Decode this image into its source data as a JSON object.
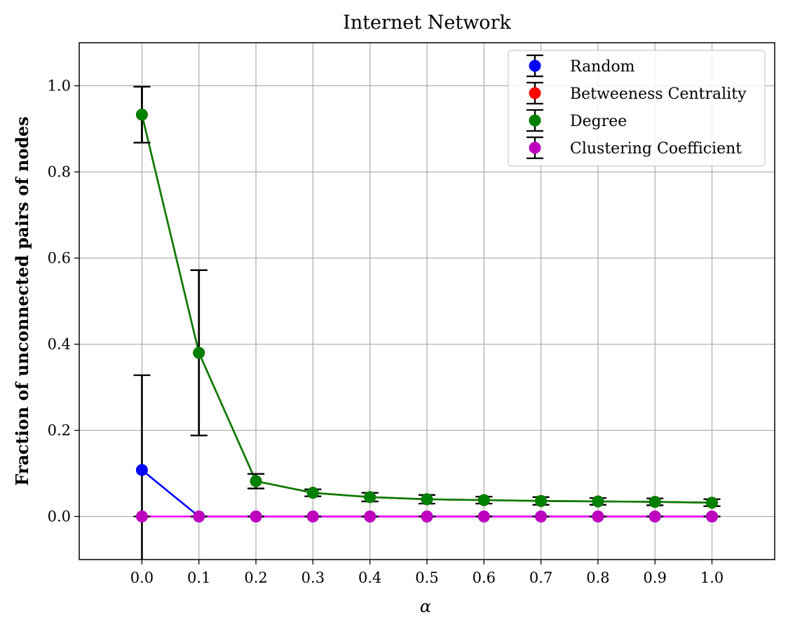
{
  "chart_data": {
    "type": "line",
    "title": "Internet Network",
    "xlabel": "α",
    "ylabel": "Fraction of unconnected pairs of nodes",
    "x": [
      0.0,
      0.1,
      0.2,
      0.3,
      0.4,
      0.5,
      0.6,
      0.7,
      0.8,
      0.9,
      1.0
    ],
    "x_tick_labels": [
      "0.0",
      "0.1",
      "0.2",
      "0.3",
      "0.4",
      "0.5",
      "0.6",
      "0.7",
      "0.8",
      "0.9",
      "1.0"
    ],
    "y_tick_values": [
      0.0,
      0.2,
      0.4,
      0.6,
      0.8,
      1.0
    ],
    "y_tick_labels": [
      "0.0",
      "0.2",
      "0.4",
      "0.6",
      "0.8",
      "1.0"
    ],
    "xlim": [
      -0.11,
      1.11
    ],
    "ylim": [
      -0.1,
      1.1
    ],
    "grid": true,
    "legend_position": "top-right",
    "series": [
      {
        "name": "Random",
        "color": "#0000ff",
        "values": [
          0.108,
          0.0,
          0.0,
          0.0,
          0.0,
          0.0,
          0.0,
          0.0,
          0.0,
          0.0,
          0.0
        ],
        "errors": [
          0.22,
          0.0,
          0.0,
          0.0,
          0.0,
          0.0,
          0.0,
          0.0,
          0.0,
          0.0,
          0.0
        ]
      },
      {
        "name": "Betweeness Centrality",
        "color": "#ff0000",
        "values": [
          0.933,
          0.38,
          0.082,
          0.055,
          0.045,
          0.04,
          0.038,
          0.036,
          0.035,
          0.034,
          0.032
        ],
        "errors": [
          0.065,
          0.192,
          0.017,
          0.008,
          0.01,
          0.01,
          0.008,
          0.009,
          0.008,
          0.008,
          0.008
        ]
      },
      {
        "name": "Degree",
        "color": "#008000",
        "values": [
          0.933,
          0.38,
          0.082,
          0.055,
          0.045,
          0.04,
          0.038,
          0.036,
          0.035,
          0.034,
          0.032
        ],
        "errors": [
          0.065,
          0.192,
          0.017,
          0.008,
          0.01,
          0.01,
          0.008,
          0.009,
          0.008,
          0.008,
          0.008
        ]
      },
      {
        "name": "Clustering Coefficient",
        "color": "#ff00ff",
        "marker_color": "#bf00bf",
        "values": [
          0.0,
          0.0,
          0.0,
          0.0,
          0.0,
          0.0,
          0.0,
          0.0,
          0.0,
          0.0,
          0.0
        ],
        "errors": [
          0.0,
          0.0,
          0.0,
          0.0,
          0.0,
          0.0,
          0.0,
          0.0,
          0.0,
          0.0,
          0.0
        ]
      }
    ]
  }
}
